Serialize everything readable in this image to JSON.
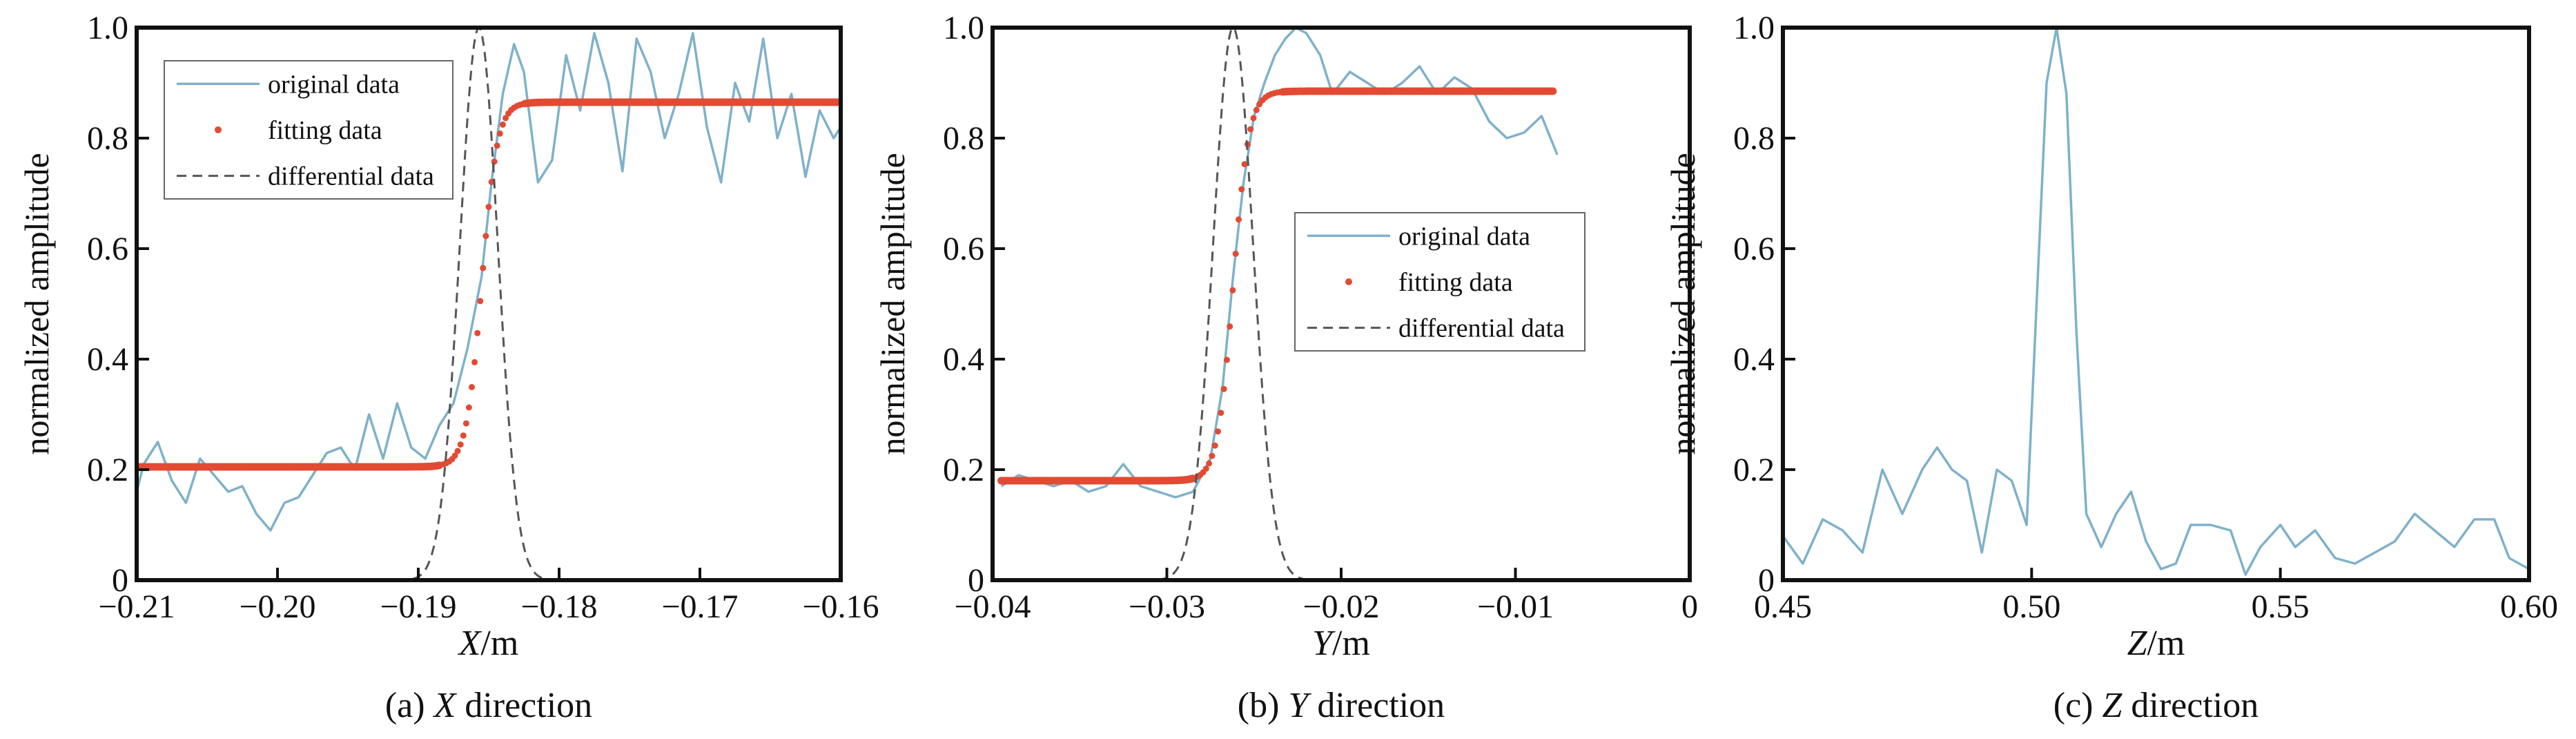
{
  "chart_data": [
    {
      "type": "line",
      "caption_prefix": "(a) ",
      "caption_var": "X",
      "caption_suffix": " direction",
      "xlabel_var": "X",
      "xlabel_unit": "/m",
      "ylabel": "normalized amplitude",
      "xlim": [
        -0.21,
        -0.16
      ],
      "ylim": [
        0,
        1.0
      ],
      "xticks": [
        -0.21,
        -0.2,
        -0.19,
        -0.18,
        -0.17,
        -0.16
      ],
      "xtick_labels": [
        "−0.21",
        "−0.20",
        "−0.19",
        "−0.18",
        "−0.17",
        "−0.16"
      ],
      "yticks": [
        0,
        0.2,
        0.4,
        0.6,
        0.8,
        1.0
      ],
      "ytick_labels": [
        "0",
        "0.2",
        "0.4",
        "0.6",
        "0.8",
        "1.0"
      ],
      "grid": false,
      "legend": {
        "position": "top-left",
        "entries": [
          "original data",
          "fitting data",
          "differential data"
        ]
      },
      "series": [
        {
          "name": "original data",
          "style": "line",
          "color": "#7fb1c9",
          "x": [
            -0.21,
            -0.2095,
            -0.2085,
            -0.2075,
            -0.2065,
            -0.2055,
            -0.2045,
            -0.2035,
            -0.2025,
            -0.2015,
            -0.2005,
            -0.1995,
            -0.1985,
            -0.1975,
            -0.1965,
            -0.1955,
            -0.1945,
            -0.1935,
            -0.1925,
            -0.1915,
            -0.1905,
            -0.1895,
            -0.1885,
            -0.1875,
            -0.1865,
            -0.1855,
            -0.1848,
            -0.184,
            -0.1832,
            -0.1825,
            -0.1815,
            -0.1805,
            -0.1795,
            -0.1785,
            -0.1775,
            -0.1765,
            -0.1755,
            -0.1745,
            -0.1735,
            -0.1725,
            -0.1715,
            -0.1705,
            -0.1695,
            -0.1685,
            -0.1675,
            -0.1665,
            -0.1655,
            -0.1645,
            -0.1635,
            -0.1625,
            -0.1615,
            -0.1605,
            -0.16
          ],
          "y": [
            0.16,
            0.21,
            0.25,
            0.18,
            0.14,
            0.22,
            0.19,
            0.16,
            0.17,
            0.12,
            0.09,
            0.14,
            0.15,
            0.19,
            0.23,
            0.24,
            0.2,
            0.3,
            0.22,
            0.32,
            0.24,
            0.22,
            0.28,
            0.32,
            0.42,
            0.55,
            0.72,
            0.88,
            0.97,
            0.92,
            0.72,
            0.76,
            0.95,
            0.85,
            0.99,
            0.9,
            0.74,
            0.98,
            0.92,
            0.8,
            0.88,
            0.99,
            0.82,
            0.72,
            0.9,
            0.83,
            0.98,
            0.8,
            0.88,
            0.73,
            0.85,
            0.8,
            0.82
          ]
        },
        {
          "name": "fitting data",
          "style": "dots",
          "color": "#e34a33",
          "model": "sigmoid",
          "low": 0.205,
          "high": 0.865,
          "center": -0.1855,
          "scale": 0.00055,
          "dense_range": [
            -0.1885,
            -0.1825
          ],
          "dense_step": 0.0002,
          "sparse_step": 0.00012
        },
        {
          "name": "differential data",
          "style": "dashed",
          "color": "#555555",
          "model": "gaussian",
          "amplitude": 1.0,
          "center": -0.1857,
          "sigma": 0.00135,
          "range": [
            -0.1915,
            -0.18
          ]
        }
      ]
    },
    {
      "type": "line",
      "caption_prefix": "(b) ",
      "caption_var": "Y",
      "caption_suffix": " direction",
      "xlabel_var": "Y",
      "xlabel_unit": "/m",
      "ylabel": "normalized amplitude",
      "xlim": [
        -0.04,
        0
      ],
      "ylim": [
        0,
        1.0
      ],
      "xticks": [
        -0.04,
        -0.03,
        -0.02,
        -0.01,
        0
      ],
      "xtick_labels": [
        "−0.04",
        "−0.03",
        "−0.02",
        "−0.01",
        "0"
      ],
      "yticks": [
        0,
        0.2,
        0.4,
        0.6,
        0.8,
        1.0
      ],
      "ytick_labels": [
        "0",
        "0.2",
        "0.4",
        "0.6",
        "0.8",
        "1.0"
      ],
      "grid": false,
      "legend": {
        "position": "center-right",
        "entries": [
          "original data",
          "fitting data",
          "differential data"
        ]
      },
      "series": [
        {
          "name": "original data",
          "style": "line",
          "color": "#7fb1c9",
          "x": [
            -0.0395,
            -0.0385,
            -0.0375,
            -0.0365,
            -0.0355,
            -0.0345,
            -0.0335,
            -0.0325,
            -0.0315,
            -0.0305,
            -0.0295,
            -0.0285,
            -0.0275,
            -0.0268,
            -0.0262,
            -0.0256,
            -0.025,
            -0.0244,
            -0.0238,
            -0.0232,
            -0.0226,
            -0.022,
            -0.0212,
            -0.0205,
            -0.0195,
            -0.0185,
            -0.0175,
            -0.0165,
            -0.0155,
            -0.0145,
            -0.0135,
            -0.0125,
            -0.0115,
            -0.0105,
            -0.0095,
            -0.0085,
            -0.0076
          ],
          "y": [
            0.17,
            0.19,
            0.18,
            0.17,
            0.18,
            0.16,
            0.17,
            0.21,
            0.17,
            0.16,
            0.15,
            0.16,
            0.22,
            0.35,
            0.55,
            0.72,
            0.84,
            0.9,
            0.95,
            0.98,
            1.0,
            0.99,
            0.95,
            0.88,
            0.92,
            0.9,
            0.88,
            0.9,
            0.93,
            0.88,
            0.91,
            0.89,
            0.83,
            0.8,
            0.81,
            0.84,
            0.77
          ]
        },
        {
          "name": "fitting data",
          "style": "dots",
          "color": "#e34a33",
          "model": "sigmoid",
          "low": 0.18,
          "high": 0.885,
          "center": -0.0262,
          "scale": 0.00045,
          "x_range": [
            -0.0395,
            -0.0078
          ],
          "dense_range": [
            -0.0285,
            -0.0235
          ],
          "dense_step": 0.00017,
          "sparse_step": 9e-05
        },
        {
          "name": "differential data",
          "style": "dashed",
          "color": "#555555",
          "model": "gaussian",
          "amplitude": 1.0,
          "center": -0.0262,
          "sigma": 0.00115,
          "range": [
            -0.0305,
            -0.0212
          ]
        }
      ]
    },
    {
      "type": "line",
      "caption_prefix": "(c) ",
      "caption_var": "Z",
      "caption_suffix": " direction",
      "xlabel_var": "Z",
      "xlabel_unit": "/m",
      "ylabel": "normalized amplitude",
      "xlim": [
        0.45,
        0.6
      ],
      "ylim": [
        0,
        1.0
      ],
      "xticks": [
        0.45,
        0.5,
        0.55,
        0.6
      ],
      "xtick_labels": [
        "0.45",
        "0.50",
        "0.55",
        "0.60"
      ],
      "yticks": [
        0,
        0.2,
        0.4,
        0.6,
        0.8,
        1.0
      ],
      "ytick_labels": [
        "0",
        "0.2",
        "0.4",
        "0.6",
        "0.8",
        "1.0"
      ],
      "grid": false,
      "series": [
        {
          "name": "original data",
          "style": "line",
          "color": "#7fb1c9",
          "x": [
            0.45,
            0.454,
            0.458,
            0.462,
            0.466,
            0.47,
            0.474,
            0.478,
            0.481,
            0.484,
            0.487,
            0.49,
            0.493,
            0.496,
            0.499,
            0.501,
            0.503,
            0.505,
            0.507,
            0.509,
            0.511,
            0.514,
            0.517,
            0.52,
            0.523,
            0.526,
            0.529,
            0.532,
            0.536,
            0.54,
            0.543,
            0.546,
            0.55,
            0.553,
            0.557,
            0.561,
            0.565,
            0.569,
            0.573,
            0.577,
            0.581,
            0.585,
            0.589,
            0.593,
            0.596,
            0.6
          ],
          "y": [
            0.08,
            0.03,
            0.11,
            0.09,
            0.05,
            0.2,
            0.12,
            0.2,
            0.24,
            0.2,
            0.18,
            0.05,
            0.2,
            0.18,
            0.1,
            0.5,
            0.9,
            1.0,
            0.88,
            0.45,
            0.12,
            0.06,
            0.12,
            0.16,
            0.07,
            0.02,
            0.03,
            0.1,
            0.1,
            0.09,
            0.01,
            0.06,
            0.1,
            0.06,
            0.09,
            0.04,
            0.03,
            0.05,
            0.07,
            0.12,
            0.09,
            0.06,
            0.11,
            0.11,
            0.04,
            0.02
          ]
        }
      ]
    }
  ]
}
